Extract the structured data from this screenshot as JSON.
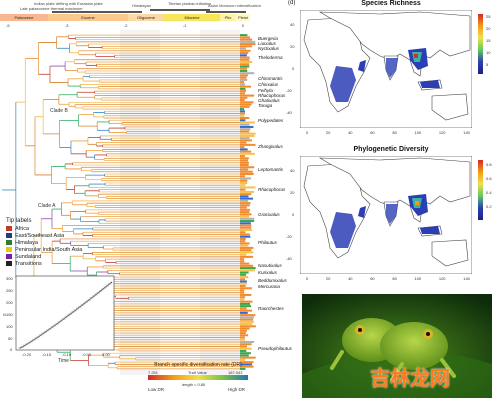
{
  "timeline": {
    "events": [
      "Indian plate drifting with Eurasian plate",
      "Late palaeocene thermal maximum",
      "Himalayan",
      "Tibetan plateau initiation",
      "Asian Monsoon intensification"
    ],
    "epochs": [
      "Paleocene",
      "Eocene",
      "Oligocene",
      "Miocene",
      "Plio",
      "Pleist"
    ],
    "ticks": [
      "-5",
      "-3",
      "-2",
      "-1",
      "0"
    ]
  },
  "tree": {
    "clade_labels": [
      "Clade B",
      "Clade A"
    ],
    "genus_labels": [
      "Buergeria",
      "Liuixalus",
      "Nyctixalus",
      "Theloderma",
      "Chiromantis",
      "Chirixalus",
      "Feihyla",
      "Rhacophorus",
      "Ghatixalus",
      "Taruga",
      "Polypedates",
      "Zhangixalus",
      "Leptomantis",
      "Rhacophorus",
      "Gracixalus",
      "Philautus",
      "Nasutixalus",
      "Kurixalus",
      "Beddomixalus",
      "Mercurana",
      "Raorchestes",
      "Pseudophilautus"
    ]
  },
  "tip_legend": {
    "title": "Tip labels",
    "items": [
      {
        "label": "Africa",
        "color": "#c0392b"
      },
      {
        "label": "East/Southeast Asia",
        "color": "#1f3a93"
      },
      {
        "label": "Himalaya",
        "color": "#2e7d32"
      },
      {
        "label": "Peninsular India/South Asia",
        "color": "#f1c40f"
      },
      {
        "label": "Sundaland",
        "color": "#7b1fa2"
      },
      {
        "label": "Transitions",
        "color": "#222222"
      }
    ]
  },
  "ltt_plot": {
    "ylabel": "N",
    "xlabel": "Time",
    "yticks": [
      "300",
      "250",
      "200",
      "150",
      "100",
      "50",
      "0"
    ],
    "xticks": [
      "-0.20",
      "-0.15",
      "-0.10",
      "-0.05",
      "0.00"
    ]
  },
  "dr_legend": {
    "title": "Branch specific diversification rate (DR)",
    "min_value": "7.251",
    "max_value": "187.043",
    "trait_label": "Trait Value",
    "length_label": "length = 0.80",
    "low_label": "Low DR",
    "high_label": "High DR"
  },
  "map_richness": {
    "title": "Species Richness",
    "corner": "(d)",
    "colorbar_ticks": [
      "25",
      "20",
      "15",
      "10",
      "5"
    ],
    "yticks": [
      "40",
      "20",
      "0",
      "-20",
      "-40"
    ],
    "xticks": [
      "0",
      "20",
      "40",
      "60",
      "80",
      "100",
      "120",
      "140"
    ]
  },
  "map_pd": {
    "title": "Phylogenetic Diversity",
    "colorbar_ticks": [
      "0.8",
      "0.6",
      "0.4",
      "0.2"
    ],
    "yticks": [
      "40",
      "20",
      "0",
      "-20",
      "-40"
    ],
    "xticks": [
      "0",
      "20",
      "40",
      "60",
      "80",
      "100",
      "120",
      "140"
    ]
  },
  "photo": {
    "watermark": "吉林龙网"
  }
}
